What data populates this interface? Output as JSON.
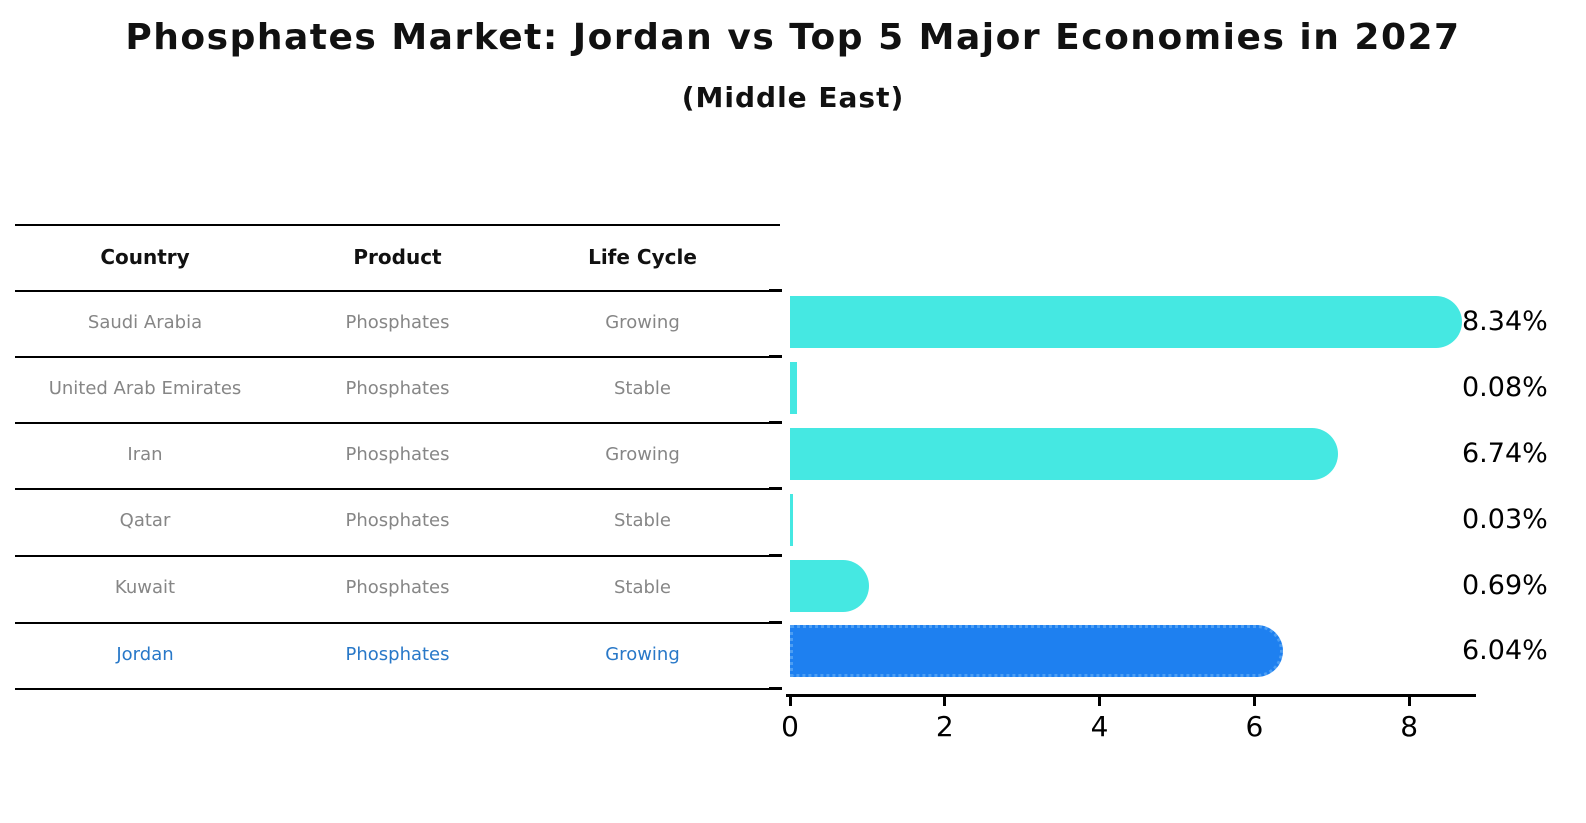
{
  "title": "Phosphates Market: Jordan vs Top 5 Major Economies in 2027",
  "subtitle": "(Middle East)",
  "table": {
    "headers": [
      "Country",
      "Product",
      "Life Cycle"
    ],
    "rows": [
      {
        "country": "Saudi Arabia",
        "product": "Phosphates",
        "life_cycle": "Growing",
        "highlighted": false
      },
      {
        "country": "United Arab Emirates",
        "product": "Phosphates",
        "life_cycle": "Stable",
        "highlighted": false
      },
      {
        "country": "Iran",
        "product": "Phosphates",
        "life_cycle": "Growing",
        "highlighted": false
      },
      {
        "country": "Qatar",
        "product": "Phosphates",
        "life_cycle": "Stable",
        "highlighted": false
      },
      {
        "country": "Kuwait",
        "product": "Phosphates",
        "life_cycle": "Stable",
        "highlighted": false
      },
      {
        "country": "Jordan",
        "product": "Phosphates",
        "life_cycle": "Growing",
        "highlighted": true
      }
    ]
  },
  "chart_data": {
    "type": "bar",
    "orientation": "horizontal",
    "title": "Phosphates Market: Jordan vs Top 5 Major Economies in 2027",
    "subtitle": "(Middle East)",
    "categories": [
      "Saudi Arabia",
      "United Arab Emirates",
      "Iran",
      "Qatar",
      "Kuwait",
      "Jordan"
    ],
    "values": [
      8.34,
      0.08,
      6.74,
      0.03,
      0.69,
      6.04
    ],
    "value_labels": [
      "8.34%",
      "0.08%",
      "6.74%",
      "0.03%",
      "0.69%",
      "6.04%"
    ],
    "unit": "percent",
    "x_ticks": [
      0,
      2,
      4,
      6,
      8
    ],
    "x_tick_labels": [
      "0",
      "2",
      "4",
      "6",
      "8"
    ],
    "xlim": [
      0,
      8.8
    ],
    "grid": false,
    "legend": "none",
    "highlight_index": 5,
    "highlight_style": "dotted-border",
    "colors": {
      "bar": "#45e8e2",
      "highlight_bar": "#1e80f0",
      "highlight_text": "#2878c8",
      "row_text": "#868686",
      "header_text": "#111111",
      "axis": "#000000",
      "value_label_text": "#000000",
      "background": "#ffffff"
    }
  }
}
